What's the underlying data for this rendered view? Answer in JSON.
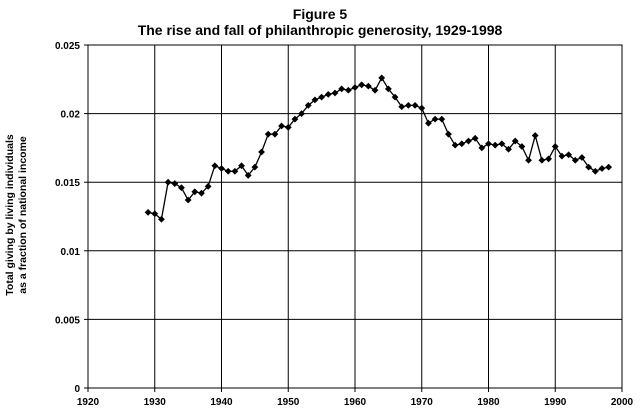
{
  "chart_data": {
    "type": "line",
    "title": "Figure 5",
    "subtitle": "The rise and fall of philanthropic generosity, 1929-1998",
    "ylabel_line1": "Total giving by living individuals",
    "ylabel_line2": "as a fraction of national income",
    "xlabel": "",
    "xlim": [
      1920,
      2000
    ],
    "ylim": [
      0,
      0.025
    ],
    "xticks": [
      "1920",
      "1930",
      "1940",
      "1950",
      "1960",
      "1970",
      "1980",
      "1990",
      "2000"
    ],
    "yticks": [
      "0",
      "0.005",
      "0.01",
      "0.015",
      "0.02",
      "0.025"
    ],
    "grid": true,
    "marker": "diamond",
    "color": "#000000",
    "x": [
      1929,
      1930,
      1931,
      1932,
      1933,
      1934,
      1935,
      1936,
      1937,
      1938,
      1939,
      1940,
      1941,
      1942,
      1943,
      1944,
      1945,
      1946,
      1947,
      1948,
      1949,
      1950,
      1951,
      1952,
      1953,
      1954,
      1955,
      1956,
      1957,
      1958,
      1959,
      1960,
      1961,
      1962,
      1963,
      1964,
      1965,
      1966,
      1967,
      1968,
      1969,
      1970,
      1971,
      1972,
      1973,
      1974,
      1975,
      1976,
      1977,
      1978,
      1979,
      1980,
      1981,
      1982,
      1983,
      1984,
      1985,
      1986,
      1987,
      1988,
      1989,
      1990,
      1991,
      1992,
      1993,
      1994,
      1995,
      1996,
      1997,
      1998
    ],
    "y": [
      0.0128,
      0.0127,
      0.0123,
      0.015,
      0.0149,
      0.0146,
      0.0137,
      0.0143,
      0.0142,
      0.0147,
      0.0162,
      0.016,
      0.0158,
      0.0158,
      0.0162,
      0.0155,
      0.0161,
      0.0172,
      0.0185,
      0.0185,
      0.0191,
      0.019,
      0.0196,
      0.02,
      0.0206,
      0.021,
      0.0212,
      0.0214,
      0.0215,
      0.0218,
      0.0217,
      0.0219,
      0.0221,
      0.022,
      0.0217,
      0.0226,
      0.0218,
      0.0212,
      0.0205,
      0.0206,
      0.0206,
      0.0204,
      0.0193,
      0.0196,
      0.0196,
      0.0185,
      0.0177,
      0.0178,
      0.018,
      0.0182,
      0.0175,
      0.0178,
      0.0177,
      0.0178,
      0.0174,
      0.018,
      0.0176,
      0.0166,
      0.0184,
      0.0166,
      0.0167,
      0.0176,
      0.0169,
      0.017,
      0.0166,
      0.0168,
      0.0161,
      0.0158,
      0.016,
      0.0161
    ]
  }
}
